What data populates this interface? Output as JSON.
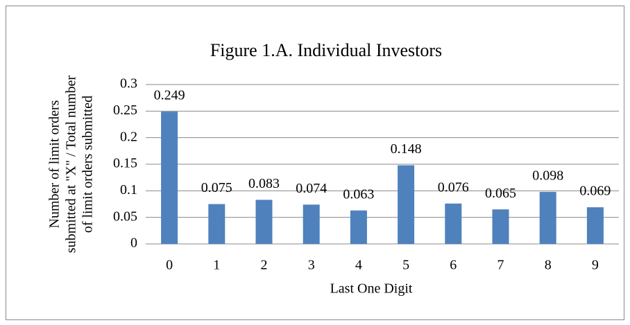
{
  "chart_data": {
    "type": "bar",
    "title": "Figure 1.A. Individual Investors",
    "x_label": "Last One Digit",
    "y_label": [
      "Number of limit orders",
      "submitted at \"X\" / Total number",
      "of limit orders submitted"
    ],
    "categories": [
      "0",
      "1",
      "2",
      "3",
      "4",
      "5",
      "6",
      "7",
      "8",
      "9"
    ],
    "values": [
      0.249,
      0.075,
      0.083,
      0.074,
      0.063,
      0.148,
      0.076,
      0.065,
      0.098,
      0.069
    ],
    "color": "#4f81bd",
    "ylim": [
      0,
      0.3
    ],
    "yticks": [
      0,
      0.05,
      0.1,
      0.15,
      0.2,
      0.25,
      0.3
    ],
    "grid": true
  }
}
